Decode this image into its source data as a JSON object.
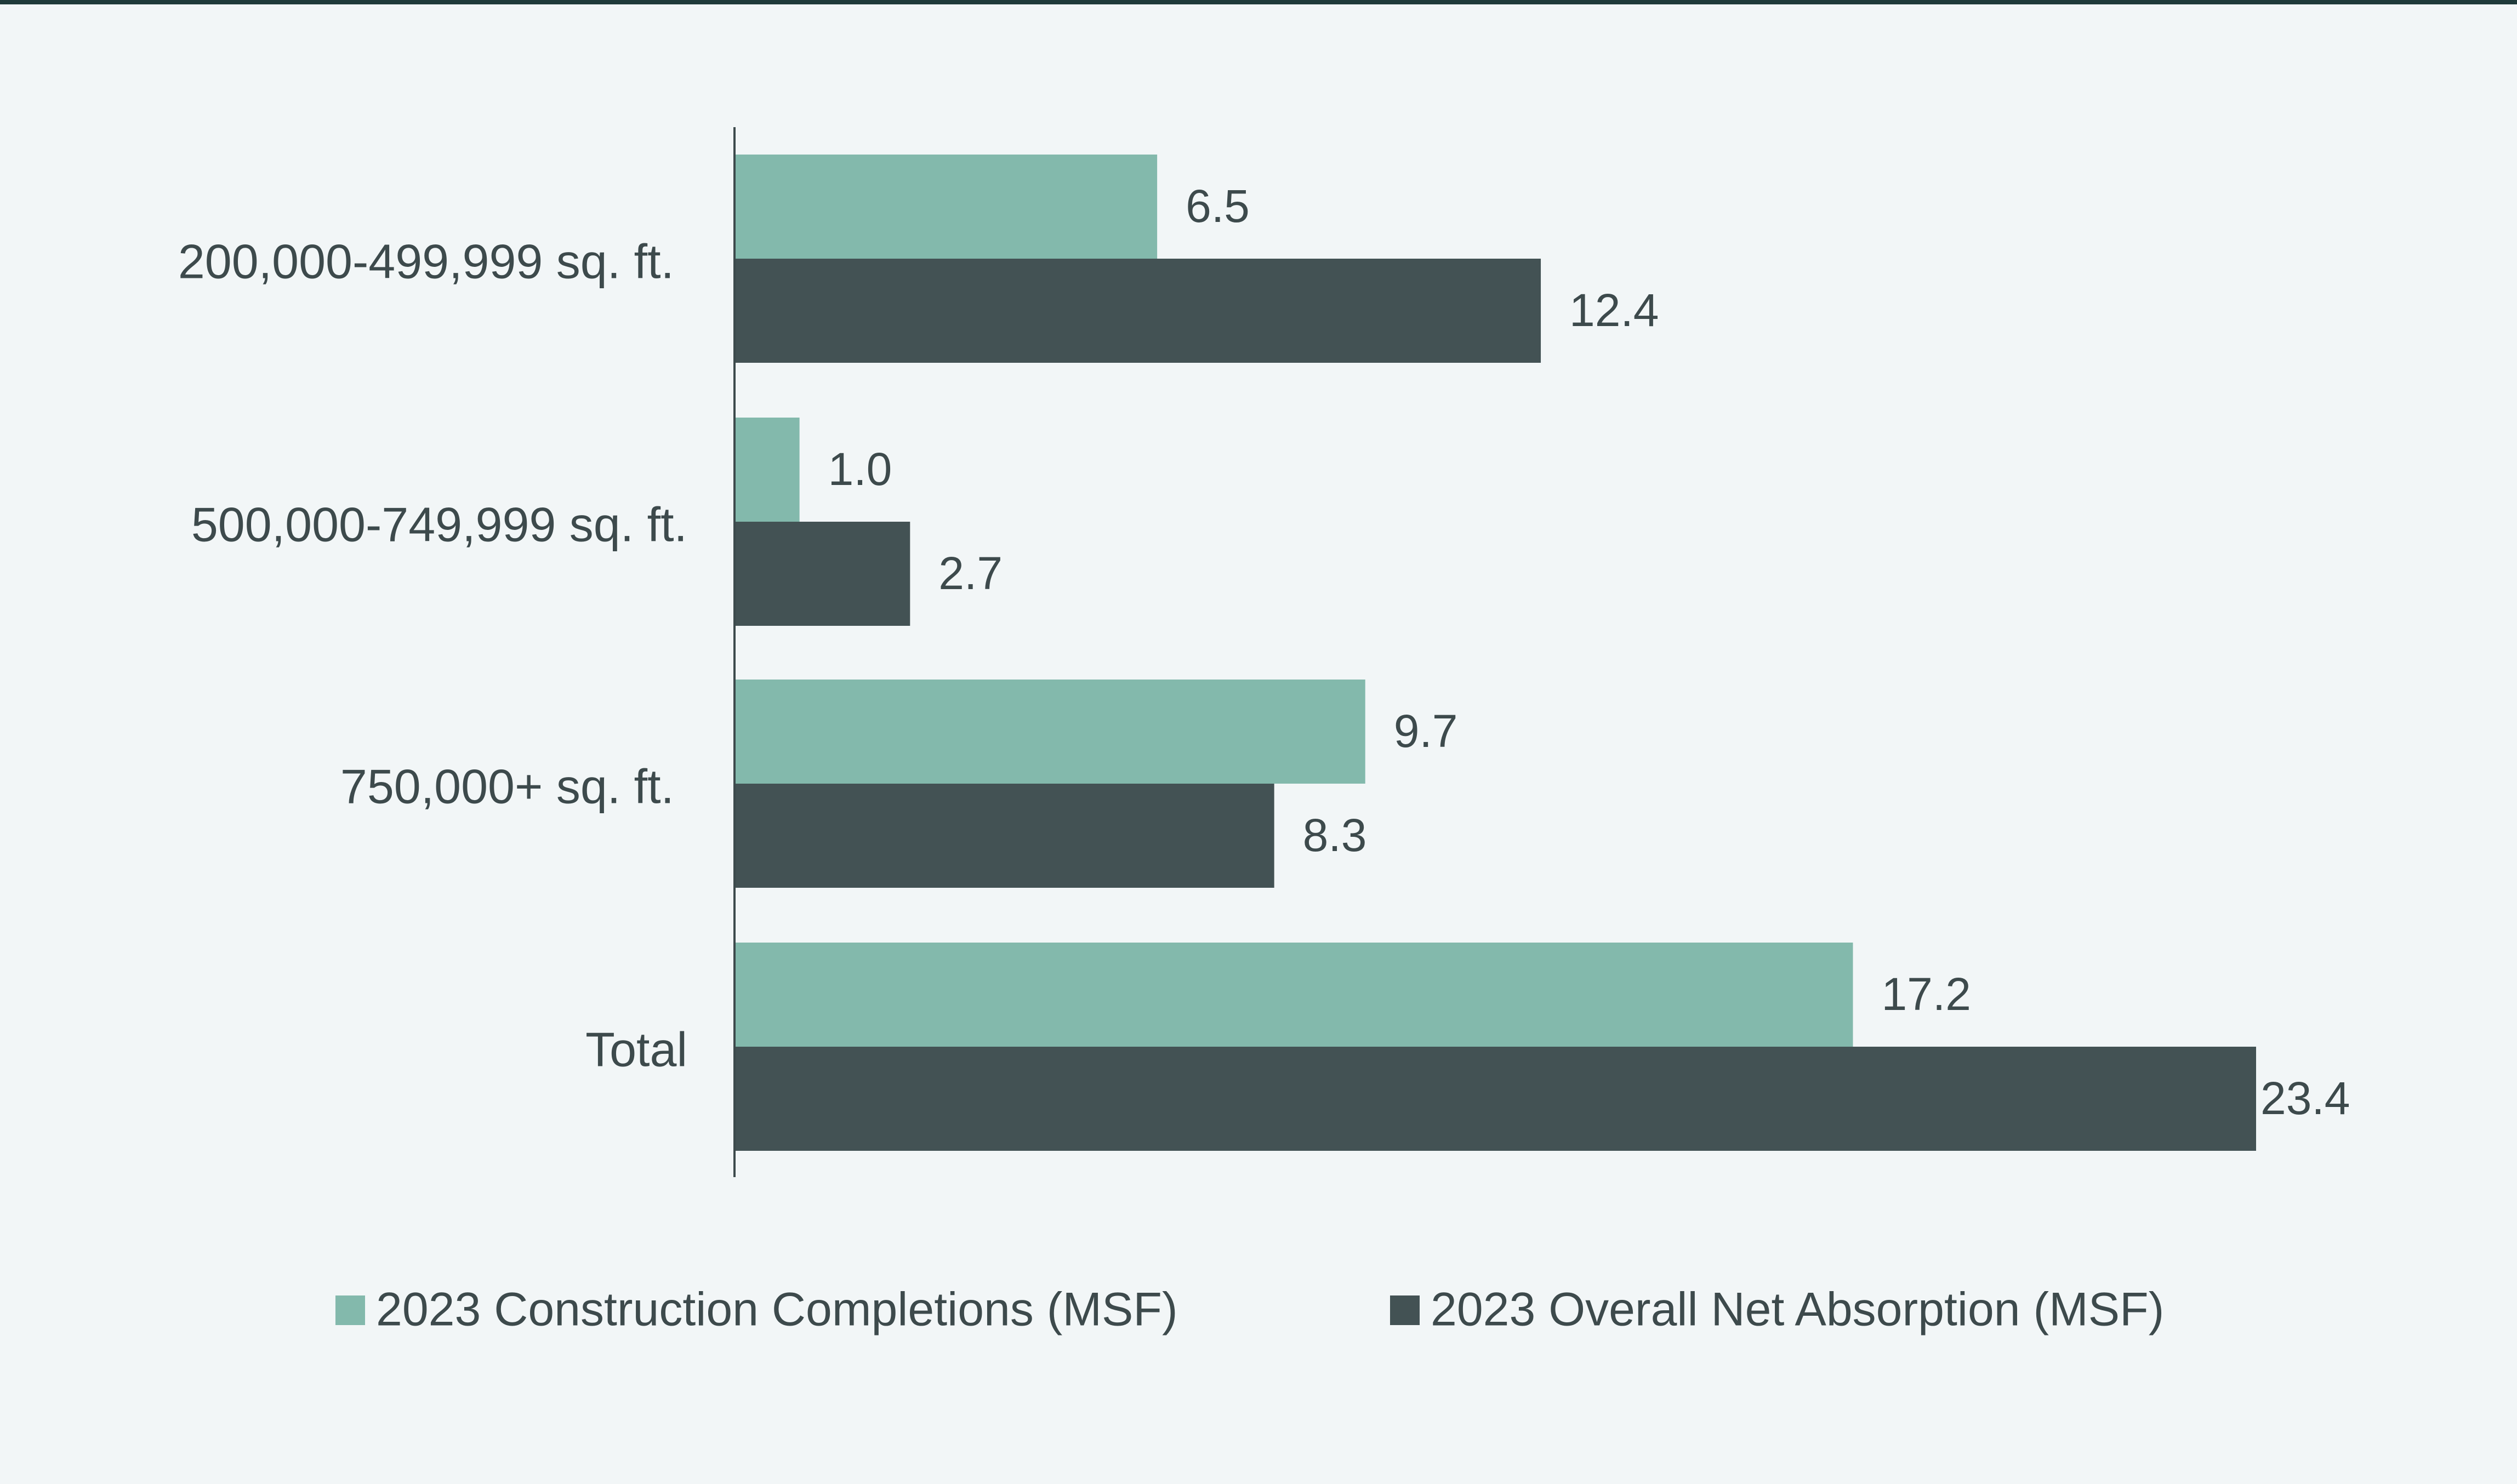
{
  "chart_data": {
    "type": "bar",
    "orientation": "horizontal",
    "title": "",
    "xlabel": "",
    "ylabel": "",
    "categories": [
      "200,000-499,999 sq. ft.",
      "500,000-749,999 sq. ft.",
      "750,000+ sq. ft.",
      "Total"
    ],
    "series": [
      {
        "name": "2023 Construction Completions (MSF)",
        "values": [
          6.5,
          1.0,
          9.7,
          17.2
        ],
        "labels": [
          "6.5",
          "1.0",
          "9.7",
          "17.2"
        ],
        "color": "#83b9ac"
      },
      {
        "name": "2023 Overall Net Absorption (MSF)",
        "values": [
          12.4,
          2.7,
          8.3,
          23.4
        ],
        "labels": [
          "12.4",
          "2.7",
          "8.3",
          "23.4"
        ],
        "color": "#435254"
      }
    ],
    "xlim": [
      0,
      23.4
    ],
    "grid": false,
    "legend_position": "bottom"
  },
  "colors": {
    "background": "#f2f6f7",
    "axis": "#3d4a4c",
    "text": "#3d4a4c"
  }
}
